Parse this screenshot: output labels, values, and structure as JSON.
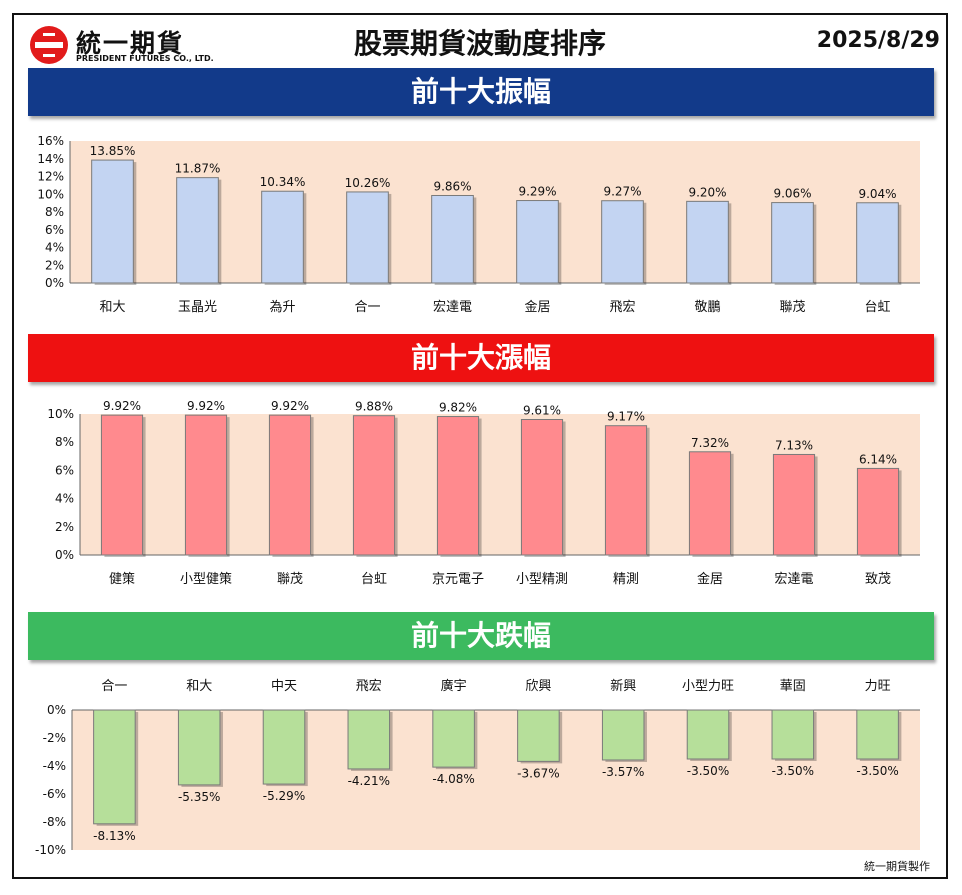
{
  "header": {
    "logo_name": "統一期貨",
    "logo_en": "PRESIDENT FUTURES CO., LTD.",
    "title": "股票期貨波動度排序",
    "date": "2025/8/29"
  },
  "footer": "統一期貨製作",
  "colors": {
    "plot_bg": "#fbe2d0",
    "amplitude_bar": "#c3d4f2",
    "rise_bar": "#ff8a8e",
    "fall_bar": "#b6df9a",
    "banner_amplitude": "#123a8a",
    "banner_rise": "#ee1111",
    "banner_fall": "#3cba5f"
  },
  "chart_data": [
    {
      "type": "bar",
      "title": "前十大振幅",
      "categories": [
        "和大",
        "玉晶光",
        "為升",
        "合一",
        "宏達電",
        "金居",
        "飛宏",
        "敬鵬",
        "聯茂",
        "台虹"
      ],
      "values": [
        13.85,
        11.87,
        10.34,
        10.26,
        9.86,
        9.29,
        9.27,
        9.2,
        9.06,
        9.04
      ],
      "value_labels": [
        "13.85%",
        "11.87%",
        "10.34%",
        "10.26%",
        "9.86%",
        "9.29%",
        "9.27%",
        "9.20%",
        "9.06%",
        "9.04%"
      ],
      "ylim": [
        0,
        16
      ],
      "yticks": [
        "0%",
        "2%",
        "4%",
        "6%",
        "8%",
        "10%",
        "12%",
        "14%",
        "16%"
      ],
      "grid": false
    },
    {
      "type": "bar",
      "title": "前十大漲幅",
      "categories": [
        "健策",
        "小型健策",
        "聯茂",
        "台虹",
        "京元電子",
        "小型精測",
        "精測",
        "金居",
        "宏達電",
        "致茂"
      ],
      "values": [
        9.92,
        9.92,
        9.92,
        9.88,
        9.82,
        9.61,
        9.17,
        7.32,
        7.13,
        6.14
      ],
      "value_labels": [
        "9.92%",
        "9.92%",
        "9.92%",
        "9.88%",
        "9.82%",
        "9.61%",
        "9.17%",
        "7.32%",
        "7.13%",
        "6.14%"
      ],
      "ylim": [
        0,
        10
      ],
      "yticks": [
        "0%",
        "2%",
        "4%",
        "6%",
        "8%",
        "10%"
      ],
      "grid": false
    },
    {
      "type": "bar",
      "title": "前十大跌幅",
      "categories": [
        "合一",
        "和大",
        "中天",
        "飛宏",
        "廣宇",
        "欣興",
        "新興",
        "小型力旺",
        "華固",
        "力旺"
      ],
      "values": [
        -8.13,
        -5.35,
        -5.29,
        -4.21,
        -4.08,
        -3.67,
        -3.57,
        -3.5,
        -3.5,
        -3.5
      ],
      "value_labels": [
        "-8.13%",
        "-5.35%",
        "-5.29%",
        "-4.21%",
        "-4.08%",
        "-3.67%",
        "-3.57%",
        "-3.50%",
        "-3.50%",
        "-3.50%"
      ],
      "ylim": [
        -10,
        0
      ],
      "yticks": [
        "0%",
        "-2%",
        "-4%",
        "-6%",
        "-8%",
        "-10%"
      ],
      "grid": false
    }
  ]
}
